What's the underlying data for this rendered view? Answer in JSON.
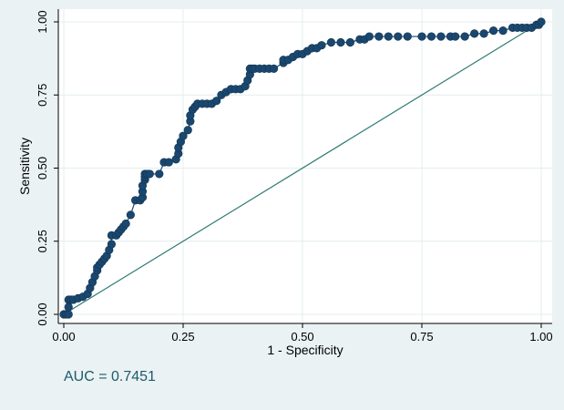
{
  "chart_data": {
    "type": "line",
    "xlabel": "1 - Specificity",
    "ylabel": "Sensitivity",
    "xlim": [
      0,
      1
    ],
    "ylim": [
      0,
      1
    ],
    "xticks": [
      "0.00",
      "0.25",
      "0.50",
      "0.75",
      "1.00"
    ],
    "yticks": [
      "0.00",
      "0.25",
      "0.50",
      "0.75",
      "1.00"
    ],
    "grid": true,
    "legend": "none",
    "annotation": "AUC = 0.7451",
    "colors": {
      "background": "#eaf2f3",
      "plot_background": "#ffffff",
      "grid": "#e4ecee",
      "series": "#1a476f",
      "reference": "#2e7a72",
      "annotation": "#1e5a6b"
    },
    "series": [
      {
        "x": [
          0.0,
          0.005,
          0.01,
          0.01,
          0.01,
          0.015,
          0.02,
          0.03,
          0.04,
          0.05,
          0.055,
          0.06,
          0.065,
          0.07,
          0.07,
          0.075,
          0.08,
          0.085,
          0.09,
          0.095,
          0.1,
          0.1,
          0.11,
          0.115,
          0.12,
          0.125,
          0.13,
          0.14,
          0.15,
          0.16,
          0.165,
          0.165,
          0.165,
          0.17,
          0.17,
          0.17,
          0.175,
          0.18,
          0.2,
          0.21,
          0.22,
          0.235,
          0.24,
          0.24,
          0.245,
          0.25,
          0.26,
          0.265,
          0.265,
          0.27,
          0.275,
          0.28,
          0.29,
          0.3,
          0.31,
          0.32,
          0.33,
          0.34,
          0.35,
          0.36,
          0.37,
          0.38,
          0.385,
          0.39,
          0.39,
          0.395,
          0.4,
          0.41,
          0.42,
          0.43,
          0.44,
          0.46,
          0.46,
          0.47,
          0.48,
          0.49,
          0.5,
          0.51,
          0.52,
          0.53,
          0.54,
          0.56,
          0.58,
          0.6,
          0.62,
          0.63,
          0.64,
          0.66,
          0.68,
          0.7,
          0.72,
          0.75,
          0.77,
          0.79,
          0.81,
          0.82,
          0.84,
          0.86,
          0.88,
          0.9,
          0.92,
          0.94,
          0.95,
          0.96,
          0.97,
          0.98,
          0.99,
          0.995,
          1.0
        ],
        "y": [
          0.0,
          0.0,
          0.0,
          0.025,
          0.05,
          0.05,
          0.05,
          0.055,
          0.06,
          0.07,
          0.09,
          0.11,
          0.13,
          0.15,
          0.16,
          0.17,
          0.18,
          0.19,
          0.2,
          0.22,
          0.24,
          0.27,
          0.27,
          0.28,
          0.29,
          0.3,
          0.31,
          0.34,
          0.39,
          0.39,
          0.4,
          0.42,
          0.44,
          0.46,
          0.47,
          0.48,
          0.48,
          0.48,
          0.48,
          0.52,
          0.52,
          0.53,
          0.55,
          0.57,
          0.59,
          0.61,
          0.63,
          0.66,
          0.68,
          0.7,
          0.71,
          0.72,
          0.72,
          0.72,
          0.72,
          0.73,
          0.75,
          0.76,
          0.77,
          0.77,
          0.77,
          0.78,
          0.8,
          0.82,
          0.84,
          0.84,
          0.84,
          0.84,
          0.84,
          0.84,
          0.84,
          0.86,
          0.87,
          0.87,
          0.88,
          0.89,
          0.89,
          0.9,
          0.91,
          0.91,
          0.92,
          0.93,
          0.93,
          0.93,
          0.94,
          0.94,
          0.95,
          0.95,
          0.95,
          0.95,
          0.95,
          0.95,
          0.95,
          0.95,
          0.95,
          0.95,
          0.95,
          0.96,
          0.96,
          0.97,
          0.97,
          0.98,
          0.98,
          0.98,
          0.98,
          0.98,
          0.99,
          0.99,
          1.0
        ]
      },
      {
        "x": [
          0,
          1
        ],
        "y": [
          0,
          1
        ]
      }
    ]
  }
}
